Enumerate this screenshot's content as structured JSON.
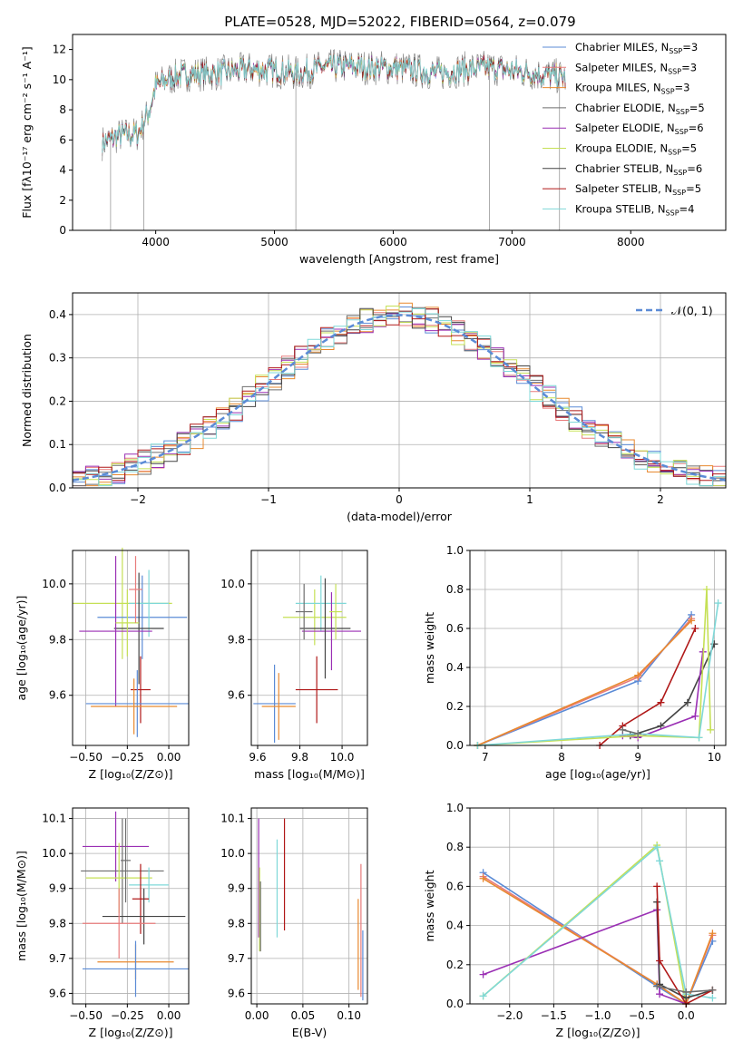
{
  "figure_title": "PLATE=0528, MJD=52022, FIBERID=0564, z=0.079",
  "colors": {
    "chabrier_miles": "#5b8bd6",
    "salpeter_miles": "#e87b7b",
    "kroupa_miles": "#e8892f",
    "chabrier_elodie": "#6e6e6e",
    "salpeter_elodie": "#9a2fb4",
    "kroupa_elodie": "#c5e055",
    "chabrier_stelib": "#444444",
    "salpeter_stelib": "#b01818",
    "kroupa_stelib": "#7fd8d8",
    "gauss": "#5b8bd6"
  },
  "chart_data": [
    {
      "id": "spectrum",
      "type": "line",
      "xlabel": "wavelength [Angstrom, rest frame]",
      "ylabel": "Flux [fλ10⁻¹⁷ erg cm⁻² s⁻¹ A⁻¹]",
      "xlim": [
        3300,
        8800
      ],
      "ylim": [
        0,
        13
      ],
      "xticks": [
        4000,
        5000,
        6000,
        7000,
        8000
      ],
      "yticks": [
        0,
        2,
        4,
        6,
        8,
        10,
        12
      ],
      "legend_position": "top-right",
      "grid": false,
      "series": [
        {
          "name": "Chabrier MILES, N",
          "sub": "SSP",
          "suffix": "=3",
          "color_key": "chabrier_miles"
        },
        {
          "name": "Salpeter MILES, N",
          "sub": "SSP",
          "suffix": "=3",
          "color_key": "salpeter_miles"
        },
        {
          "name": "Kroupa MILES, N",
          "sub": "SSP",
          "suffix": "=3",
          "color_key": "kroupa_miles"
        },
        {
          "name": "Chabrier ELODIE, N",
          "sub": "SSP",
          "suffix": "=5",
          "color_key": "chabrier_elodie"
        },
        {
          "name": "Salpeter ELODIE, N",
          "sub": "SSP",
          "suffix": "=6",
          "color_key": "salpeter_elodie"
        },
        {
          "name": "Kroupa ELODIE, N",
          "sub": "SSP",
          "suffix": "=5",
          "color_key": "kroupa_elodie"
        },
        {
          "name": "Chabrier STELIB, N",
          "sub": "SSP",
          "suffix": "=6",
          "color_key": "chabrier_stelib"
        },
        {
          "name": "Salpeter STELIB, N",
          "sub": "SSP",
          "suffix": "=5",
          "color_key": "salpeter_stelib"
        },
        {
          "name": "Kroupa STELIB, N",
          "sub": "SSP",
          "suffix": "=4",
          "color_key": "kroupa_stelib"
        }
      ],
      "data_envelope": {
        "x": [
          3550,
          3700,
          3850,
          3950,
          4000,
          4100,
          4200,
          4300,
          4500,
          4800,
          5000,
          5200,
          5400,
          5600,
          5800,
          6000,
          6200,
          6400,
          6600,
          6800,
          7000,
          7200,
          7300,
          7400,
          7450
        ],
        "y": [
          5.8,
          6.3,
          6.4,
          8.0,
          9.6,
          10.0,
          10.3,
          10.4,
          10.4,
          10.7,
          10.6,
          10.4,
          10.8,
          10.9,
          10.8,
          10.8,
          10.6,
          10.4,
          10.7,
          10.8,
          10.6,
          10.4,
          10.3,
          10.2,
          10.1
        ]
      }
    },
    {
      "id": "residuals",
      "type": "bar",
      "xlabel": "(data-model)/error",
      "ylabel": "Normed distribution",
      "xlim": [
        -2.5,
        2.5
      ],
      "ylim": [
        0,
        0.45
      ],
      "xticks": [
        -2,
        -1,
        0,
        1,
        2
      ],
      "xtick_labels": [
        "−2",
        "−1",
        "0",
        "1",
        "2"
      ],
      "yticks": [
        0.0,
        0.1,
        0.2,
        0.3,
        0.4
      ],
      "ytick_labels": [
        "0.0",
        "0.1",
        "0.2",
        "0.3",
        "0.4"
      ],
      "grid": true,
      "legend_position": "top-right",
      "gauss_label": "𝒩(0, 1)"
    },
    {
      "id": "age_vs_Z",
      "type": "scatter",
      "xlabel": "Z [log₁₀(Z/Z⊙)]",
      "ylabel": "age  [log₁₀(age/yr)]",
      "xlim": [
        -0.58,
        0.12
      ],
      "ylim": [
        9.42,
        10.12
      ],
      "xticks": [
        -0.5,
        -0.25,
        0.0
      ],
      "xtick_labels": [
        "−0.50",
        "−0.25",
        "0.00"
      ],
      "yticks": [
        9.6,
        9.8,
        10.0
      ],
      "ytick_labels": [
        "9.6",
        "9.8",
        "10.0"
      ],
      "grid": true,
      "points": [
        {
          "x": -0.28,
          "y": 9.93,
          "xerr": 0.3,
          "yerr": 0.2,
          "color_key": "kroupa_elodie"
        },
        {
          "x": -0.16,
          "y": 9.88,
          "xerr": 0.27,
          "yerr": 0.15,
          "color_key": "chabrier_miles"
        },
        {
          "x": -0.12,
          "y": 9.93,
          "xerr": 0.12,
          "yerr": 0.12,
          "color_key": "kroupa_stelib"
        },
        {
          "x": -0.18,
          "y": 9.84,
          "xerr": 0.15,
          "yerr": 0.2,
          "color_key": "chabrier_stelib"
        },
        {
          "x": -0.32,
          "y": 9.83,
          "xerr": 0.22,
          "yerr": 0.27,
          "color_key": "salpeter_elodie"
        },
        {
          "x": -0.17,
          "y": 9.62,
          "xerr": 0.06,
          "yerr": 0.12,
          "color_key": "salpeter_stelib"
        },
        {
          "x": -0.19,
          "y": 9.57,
          "xerr": 0.31,
          "yerr": 0.12,
          "color_key": "chabrier_miles"
        },
        {
          "x": -0.21,
          "y": 9.56,
          "xerr": 0.26,
          "yerr": 0.1,
          "color_key": "kroupa_miles"
        },
        {
          "x": -0.25,
          "y": 9.86,
          "xerr": 0.07,
          "yerr": 0.12,
          "color_key": "kroupa_elodie"
        },
        {
          "x": -0.2,
          "y": 9.98,
          "xerr": 0.04,
          "yerr": 0.12,
          "color_key": "salpeter_miles"
        }
      ]
    },
    {
      "id": "age_vs_mass",
      "type": "scatter",
      "xlabel": "mass [log₁₀(M/M⊙)]",
      "ylabel": "",
      "xlim": [
        9.57,
        10.12
      ],
      "ylim": [
        9.42,
        10.12
      ],
      "xticks": [
        9.6,
        9.8,
        10.0
      ],
      "xtick_labels": [
        "9.6",
        "9.8",
        "10.0"
      ],
      "yticks": [
        9.6,
        9.8,
        10.0
      ],
      "ytick_labels": [
        "9.6",
        "9.8",
        "10.0"
      ],
      "grid": true,
      "points": [
        {
          "x": 9.87,
          "y": 9.88,
          "xerr": 0.15,
          "yerr": 0.1,
          "color_key": "kroupa_elodie"
        },
        {
          "x": 9.9,
          "y": 9.93,
          "xerr": 0.12,
          "yerr": 0.1,
          "color_key": "kroupa_stelib"
        },
        {
          "x": 9.95,
          "y": 9.83,
          "xerr": 0.14,
          "yerr": 0.14,
          "color_key": "salpeter_elodie"
        },
        {
          "x": 9.92,
          "y": 9.84,
          "xerr": 0.12,
          "yerr": 0.18,
          "color_key": "chabrier_stelib"
        },
        {
          "x": 9.88,
          "y": 9.62,
          "xerr": 0.1,
          "yerr": 0.12,
          "color_key": "salpeter_stelib"
        },
        {
          "x": 9.68,
          "y": 9.57,
          "xerr": 0.1,
          "yerr": 0.14,
          "color_key": "chabrier_miles"
        },
        {
          "x": 9.7,
          "y": 9.56,
          "xerr": 0.08,
          "yerr": 0.12,
          "color_key": "kroupa_miles"
        },
        {
          "x": 9.82,
          "y": 9.9,
          "xerr": 0.04,
          "yerr": 0.1,
          "color_key": "chabrier_elodie"
        },
        {
          "x": 9.97,
          "y": 9.9,
          "xerr": 0.03,
          "yerr": 0.1,
          "color_key": "kroupa_elodie"
        }
      ]
    },
    {
      "id": "weight_vs_age",
      "type": "line",
      "xlabel": "age  [log₁₀(age/yr)]",
      "ylabel": "mass weight",
      "xlim": [
        6.8,
        10.15
      ],
      "ylim": [
        0,
        1.0
      ],
      "xticks": [
        7,
        8,
        9,
        10
      ],
      "yticks": [
        0.0,
        0.2,
        0.4,
        0.6,
        0.8,
        1.0
      ],
      "ytick_labels": [
        "0.0",
        "0.2",
        "0.4",
        "0.6",
        "0.8",
        "1.0"
      ],
      "grid": true,
      "series": [
        {
          "color_key": "chabrier_miles",
          "x": [
            6.9,
            9.0,
            9.7
          ],
          "y": [
            0.0,
            0.33,
            0.67
          ]
        },
        {
          "color_key": "salpeter_miles",
          "x": [
            6.9,
            9.0,
            9.7
          ],
          "y": [
            0.0,
            0.35,
            0.65
          ]
        },
        {
          "color_key": "kroupa_miles",
          "x": [
            6.9,
            9.0,
            9.7
          ],
          "y": [
            0.0,
            0.36,
            0.64
          ]
        },
        {
          "color_key": "salpeter_stelib",
          "x": [
            8.5,
            8.8,
            9.3,
            9.75
          ],
          "y": [
            0.0,
            0.1,
            0.22,
            0.6
          ]
        },
        {
          "color_key": "chabrier_stelib",
          "x": [
            8.9,
            9.3,
            9.65,
            10.0
          ],
          "y": [
            0.05,
            0.1,
            0.22,
            0.52
          ]
        },
        {
          "color_key": "salpeter_elodie",
          "x": [
            8.8,
            9.0,
            9.75,
            9.85
          ],
          "y": [
            0.05,
            0.04,
            0.15,
            0.48
          ]
        },
        {
          "color_key": "kroupa_elodie",
          "x": [
            6.9,
            9.0,
            9.8,
            9.9,
            9.95
          ],
          "y": [
            0.0,
            0.05,
            0.04,
            0.8,
            0.08
          ]
        },
        {
          "color_key": "kroupa_stelib",
          "x": [
            6.9,
            9.0,
            9.8,
            10.05
          ],
          "y": [
            0.0,
            0.06,
            0.04,
            0.73
          ]
        },
        {
          "color_key": "chabrier_elodie",
          "x": [
            8.8,
            9.0
          ],
          "y": [
            0.08,
            0.06
          ]
        }
      ]
    },
    {
      "id": "mass_vs_Z",
      "type": "scatter",
      "xlabel": "Z [log₁₀(Z/Z⊙)]",
      "ylabel": "mass [log₁₀(M/M⊙)]",
      "xlim": [
        -0.58,
        0.12
      ],
      "ylim": [
        9.57,
        10.13
      ],
      "xticks": [
        -0.5,
        -0.25,
        0.0
      ],
      "xtick_labels": [
        "−0.50",
        "−0.25",
        "0.00"
      ],
      "yticks": [
        9.6,
        9.7,
        9.8,
        9.9,
        10.0,
        10.1
      ],
      "ytick_labels": [
        "9.6",
        "9.7",
        "9.8",
        "9.9",
        "10.0",
        "10.1"
      ],
      "grid": true,
      "points": [
        {
          "x": -0.32,
          "y": 10.02,
          "xerr": 0.2,
          "yerr": 0.1,
          "color_key": "salpeter_elodie"
        },
        {
          "x": -0.28,
          "y": 9.95,
          "xerr": 0.25,
          "yerr": 0.15,
          "color_key": "chabrier_elodie"
        },
        {
          "x": -0.3,
          "y": 9.93,
          "xerr": 0.2,
          "yerr": 0.1,
          "color_key": "kroupa_elodie"
        },
        {
          "x": -0.12,
          "y": 9.91,
          "xerr": 0.12,
          "yerr": 0.05,
          "color_key": "kroupa_stelib"
        },
        {
          "x": -0.17,
          "y": 9.87,
          "xerr": 0.05,
          "yerr": 0.1,
          "color_key": "salpeter_stelib"
        },
        {
          "x": -0.15,
          "y": 9.82,
          "xerr": 0.25,
          "yerr": 0.08,
          "color_key": "chabrier_stelib"
        },
        {
          "x": -0.3,
          "y": 9.8,
          "xerr": 0.22,
          "yerr": 0.1,
          "color_key": "salpeter_miles"
        },
        {
          "x": -0.2,
          "y": 9.69,
          "xerr": 0.23,
          "yerr": 0.05,
          "color_key": "kroupa_miles"
        },
        {
          "x": -0.2,
          "y": 9.67,
          "xerr": 0.32,
          "yerr": 0.08,
          "color_key": "chabrier_miles"
        },
        {
          "x": -0.26,
          "y": 9.98,
          "xerr": 0.03,
          "yerr": 0.12,
          "color_key": "chabrier_elodie"
        }
      ]
    },
    {
      "id": "mass_vs_ebv",
      "type": "scatter",
      "xlabel": "E(B-V)",
      "ylabel": "",
      "xlim": [
        -0.006,
        0.12
      ],
      "ylim": [
        9.57,
        10.13
      ],
      "xticks": [
        0.0,
        0.05,
        0.1
      ],
      "xtick_labels": [
        "0.00",
        "0.05",
        "0.10"
      ],
      "yticks": [
        9.6,
        9.7,
        9.8,
        9.9,
        10.0,
        10.1
      ],
      "ytick_labels": [
        "9.6",
        "9.7",
        "9.8",
        "9.9",
        "10.0",
        "10.1"
      ],
      "grid": true,
      "points": [
        {
          "x": 0.002,
          "y": 9.93,
          "xerr": 0.0,
          "yerr": 0.17,
          "color_key": "salpeter_elodie"
        },
        {
          "x": 0.003,
          "y": 9.84,
          "xerr": 0.0,
          "yerr": 0.12,
          "color_key": "kroupa_elodie"
        },
        {
          "x": 0.004,
          "y": 9.82,
          "xerr": 0.0,
          "yerr": 0.1,
          "color_key": "chabrier_elodie"
        },
        {
          "x": 0.022,
          "y": 9.9,
          "xerr": 0.0,
          "yerr": 0.14,
          "color_key": "kroupa_stelib"
        },
        {
          "x": 0.03,
          "y": 9.94,
          "xerr": 0.0,
          "yerr": 0.16,
          "color_key": "salpeter_stelib"
        },
        {
          "x": 0.11,
          "y": 9.74,
          "xerr": 0.0,
          "yerr": 0.13,
          "color_key": "kroupa_miles"
        },
        {
          "x": 0.113,
          "y": 9.78,
          "xerr": 0.0,
          "yerr": 0.19,
          "color_key": "salpeter_miles"
        },
        {
          "x": 0.115,
          "y": 9.68,
          "xerr": 0.0,
          "yerr": 0.1,
          "color_key": "chabrier_miles"
        }
      ]
    },
    {
      "id": "weight_vs_Z",
      "type": "line",
      "xlabel": "Z [log₁₀(Z/Z⊙)]",
      "ylabel": "mass weight",
      "xlim": [
        -2.45,
        0.45
      ],
      "ylim": [
        0,
        1.0
      ],
      "xticks": [
        -2.0,
        -1.5,
        -1.0,
        -0.5,
        0.0
      ],
      "xtick_labels": [
        "−2.0",
        "−1.5",
        "−1.0",
        "−0.5",
        "0.0"
      ],
      "yticks": [
        0.0,
        0.2,
        0.4,
        0.6,
        0.8,
        1.0
      ],
      "ytick_labels": [
        "0.0",
        "0.2",
        "0.4",
        "0.6",
        "0.8",
        "1.0"
      ],
      "grid": true,
      "series": [
        {
          "color_key": "chabrier_miles",
          "x": [
            -2.3,
            -0.33,
            0.0,
            0.3
          ],
          "y": [
            0.67,
            0.09,
            0.0,
            0.32
          ]
        },
        {
          "color_key": "salpeter_miles",
          "x": [
            -2.3,
            -0.33,
            0.0,
            0.3
          ],
          "y": [
            0.65,
            0.1,
            0.0,
            0.35
          ]
        },
        {
          "color_key": "kroupa_miles",
          "x": [
            -2.3,
            -0.33,
            0.0,
            0.3
          ],
          "y": [
            0.64,
            0.1,
            0.0,
            0.36
          ]
        },
        {
          "color_key": "salpeter_elodie",
          "x": [
            -2.3,
            -0.33,
            -0.3,
            0.0
          ],
          "y": [
            0.15,
            0.48,
            0.05,
            0.0
          ]
        },
        {
          "color_key": "kroupa_elodie",
          "x": [
            -2.3,
            -0.33,
            0.0
          ],
          "y": [
            0.04,
            0.81,
            0.0
          ]
        },
        {
          "color_key": "kroupa_stelib",
          "x": [
            -2.3,
            -0.33,
            -0.3,
            0.0,
            0.3
          ],
          "y": [
            0.04,
            0.8,
            0.73,
            0.05,
            0.03
          ]
        },
        {
          "color_key": "chabrier_stelib",
          "x": [
            -0.33,
            -0.3,
            0.0,
            0.3
          ],
          "y": [
            0.52,
            0.1,
            0.03,
            0.07
          ]
        },
        {
          "color_key": "salpeter_stelib",
          "x": [
            -0.33,
            -0.3,
            0.0,
            0.3
          ],
          "y": [
            0.6,
            0.22,
            0.0,
            0.07
          ]
        },
        {
          "color_key": "chabrier_elodie",
          "x": [
            -0.33,
            0.0,
            0.3
          ],
          "y": [
            0.09,
            0.06,
            0.07
          ]
        }
      ]
    }
  ]
}
